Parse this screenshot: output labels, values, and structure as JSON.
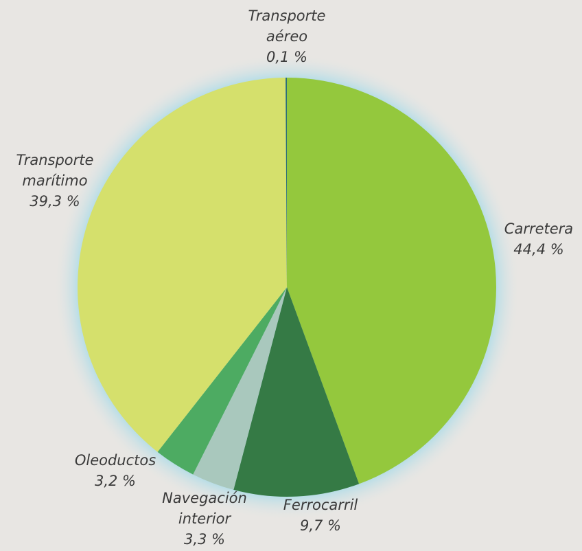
{
  "chart_data": {
    "type": "pie",
    "categories": [
      "Carretera",
      "Ferrocarril",
      "Navegación interior",
      "Oleoductos",
      "Transporte marítimo",
      "Transporte aéreo"
    ],
    "values": [
      44.4,
      9.7,
      3.3,
      3.2,
      39.3,
      0.1
    ],
    "value_labels": [
      "44,4 %",
      "9,7 %",
      "3,3 %",
      "3,2 %",
      "39,3 %",
      "0,1 %"
    ],
    "colors": [
      "#94c83d",
      "#357a45",
      "#a9c8bd",
      "#4dab62",
      "#d5e06c",
      "#2a6e78"
    ]
  }
}
